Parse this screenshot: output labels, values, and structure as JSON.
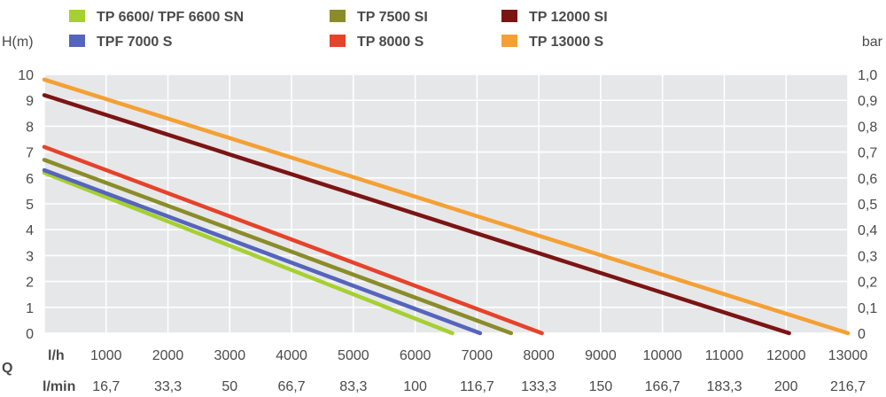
{
  "chart_data": {
    "type": "line",
    "y_left_label": "H(m)",
    "y_right_label": "bar",
    "ylim": [
      0,
      10
    ],
    "xlim": [
      0,
      13000
    ],
    "y_left_ticks": [
      "0",
      "1",
      "2",
      "3",
      "4",
      "5",
      "6",
      "7",
      "8",
      "9",
      "10"
    ],
    "y_right_ticks": [
      "0",
      "0,1",
      "0,2",
      "0,3",
      "0,4",
      "0,5",
      "0,6",
      "0,7",
      "0,8",
      "0,9",
      "1,0"
    ],
    "x_lh_label": "l/h",
    "x_lh_ticks": [
      "1000",
      "2000",
      "3000",
      "4000",
      "5000",
      "6000",
      "7000",
      "8000",
      "9000",
      "10000",
      "11000",
      "12000",
      "13000"
    ],
    "x_q_label": "Q",
    "x_lmin_label": "l/min",
    "x_lmin_ticks": [
      "16,7",
      "33,3",
      "50",
      "66,7",
      "83,3",
      "100",
      "116,7",
      "133,3",
      "150",
      "166,7",
      "183,3",
      "200",
      "216,7"
    ],
    "grid": true,
    "legend_position": "top",
    "series": [
      {
        "name": "TP 6600/ TPF 6600 SN",
        "color": "#a6d030",
        "x": [
          0,
          6600
        ],
        "y": [
          6.2,
          0
        ]
      },
      {
        "name": "TPF 7000 S",
        "color": "#5565bd",
        "x": [
          0,
          7050
        ],
        "y": [
          6.3,
          0
        ]
      },
      {
        "name": "TP 7500 SI",
        "color": "#8a8c2a",
        "x": [
          0,
          7550
        ],
        "y": [
          6.7,
          0
        ]
      },
      {
        "name": "TP 8000 S",
        "color": "#e5432a",
        "x": [
          0,
          8050
        ],
        "y": [
          7.2,
          0
        ]
      },
      {
        "name": "TP 12000 SI",
        "color": "#7c1414",
        "x": [
          0,
          12050
        ],
        "y": [
          9.2,
          0
        ]
      },
      {
        "name": "TP 13000 S",
        "color": "#f4a034",
        "x": [
          0,
          13000
        ],
        "y": [
          9.8,
          0
        ]
      }
    ]
  }
}
